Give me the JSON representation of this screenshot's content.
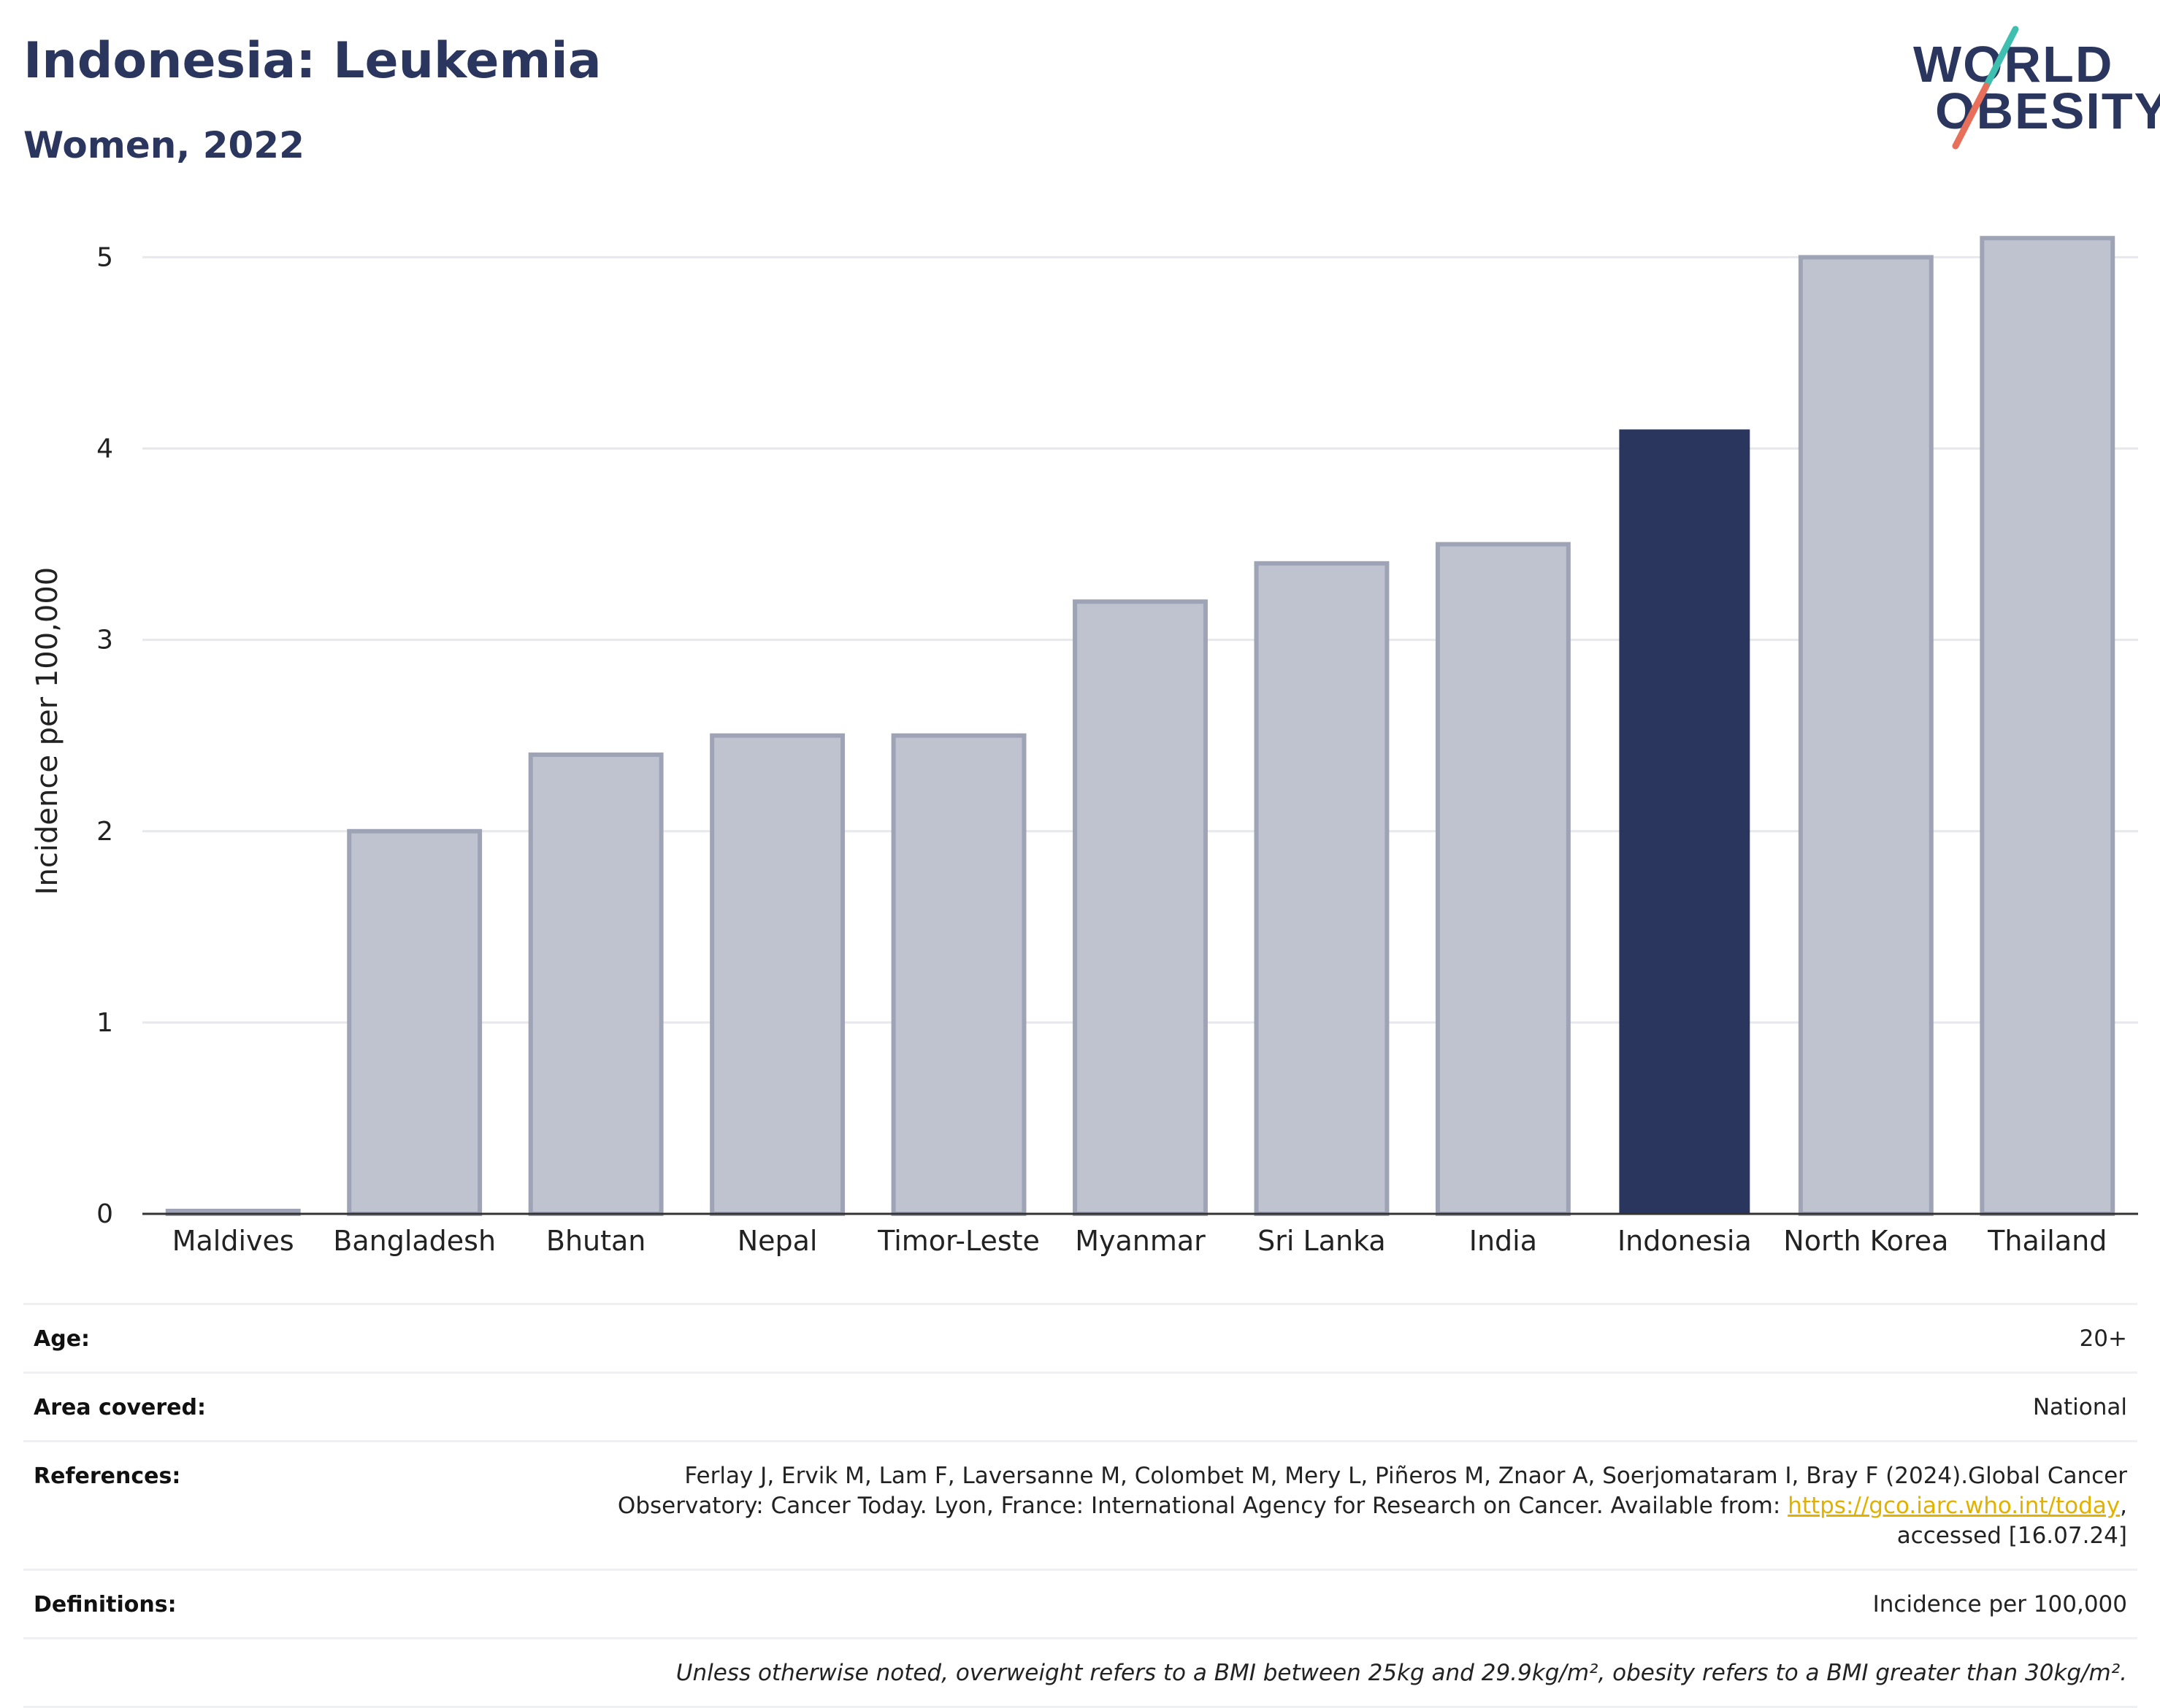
{
  "header": {
    "title": "Indonesia: Leukemia",
    "subtitle": "Women, 2022"
  },
  "logo": {
    "line1": "WORLD",
    "line2": "OBESITY",
    "colors": {
      "text": "#2b365f",
      "slash_top": "#3fbfb0",
      "slash_bottom": "#e8705a"
    }
  },
  "chart_data": {
    "type": "bar",
    "ylabel": "Incidence per 100,000",
    "ylim": [
      0,
      5.2
    ],
    "yticks": [
      0,
      1,
      2,
      3,
      4,
      5
    ],
    "grid": true,
    "categories": [
      "Maldives",
      "Bangladesh",
      "Bhutan",
      "Nepal",
      "Timor-Leste",
      "Myanmar",
      "Sri Lanka",
      "India",
      "Indonesia",
      "North Korea",
      "Thailand"
    ],
    "values": [
      0.01,
      2.0,
      2.4,
      2.5,
      2.5,
      3.2,
      3.4,
      3.5,
      4.1,
      5.0,
      5.1
    ],
    "highlight": "Indonesia",
    "colors": {
      "highlight": "#2b365f",
      "other": "#bfc3d0",
      "other_border": "#9ea3b6",
      "grid": "#e6e8ee",
      "axis": "#333333"
    }
  },
  "meta": {
    "age": {
      "label": "Age:",
      "value": "20+"
    },
    "area": {
      "label": "Area covered:",
      "value": "National"
    },
    "references": {
      "label": "References:",
      "line1": "Ferlay J, Ervik M, Lam F, Laversanne M, Colombet M, Mery L, Piñeros M, Znaor A, Soerjomataram I, Bray F (2024).Global Cancer",
      "line2": "Observatory: Cancer Today. Lyon, France: International Agency for Research on Cancer. Available from: ",
      "link": "https://gco.iarc.who.int/today",
      "line3": "accessed [16.07.24]"
    },
    "definitions": {
      "label": "Definitions:",
      "value": "Incidence per 100,000"
    },
    "note": "Unless otherwise noted, overweight refers to a BMI between 25kg and 29.9kg/m², obesity refers to a BMI greater than 30kg/m²."
  }
}
